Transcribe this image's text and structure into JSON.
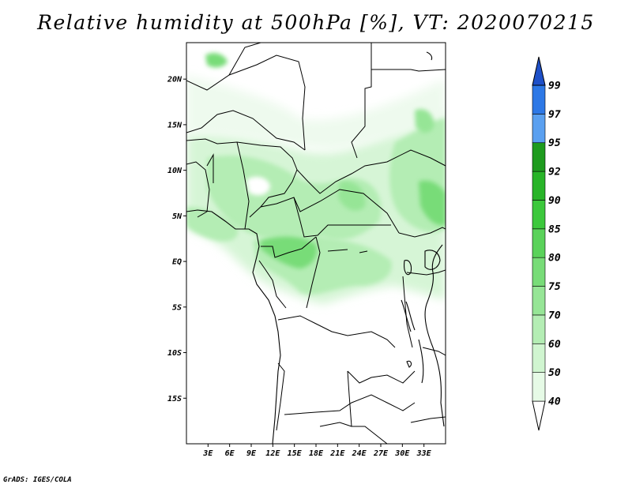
{
  "title": "Relative humidity at 500hPa [%], VT: 2020070215",
  "credit": "GrADS: IGES/COLA",
  "map": {
    "lon_range": [
      0,
      36
    ],
    "lat_range": [
      -20,
      24
    ],
    "lat_ticks": [
      {
        "value": 20,
        "label": "20N"
      },
      {
        "value": 15,
        "label": "15N"
      },
      {
        "value": 10,
        "label": "10N"
      },
      {
        "value": 5,
        "label": "5N"
      },
      {
        "value": 0,
        "label": "EQ"
      },
      {
        "value": -5,
        "label": "5S"
      },
      {
        "value": -10,
        "label": "10S"
      },
      {
        "value": -15,
        "label": "15S"
      }
    ],
    "lon_ticks": [
      {
        "value": 3,
        "label": "3E"
      },
      {
        "value": 6,
        "label": "6E"
      },
      {
        "value": 9,
        "label": "9E"
      },
      {
        "value": 12,
        "label": "12E"
      },
      {
        "value": 15,
        "label": "15E"
      },
      {
        "value": 18,
        "label": "18E"
      },
      {
        "value": 21,
        "label": "21E"
      },
      {
        "value": 24,
        "label": "24E"
      },
      {
        "value": 27,
        "label": "27E"
      },
      {
        "value": 30,
        "label": "30E"
      },
      {
        "value": 33,
        "label": "33E"
      }
    ]
  },
  "colorbar": {
    "levels": [
      "40",
      "50",
      "60",
      "70",
      "75",
      "80",
      "85",
      "90",
      "92",
      "95",
      "97",
      "99"
    ],
    "colors": [
      "#ffffff",
      "#e6fae6",
      "#d0f5d0",
      "#b4edb4",
      "#96e596",
      "#78dc78",
      "#5ad25a",
      "#3cc83c",
      "#28b428",
      "#1e9b1e",
      "#5aa0f0",
      "#2d78e6",
      "#1e50c8"
    ]
  },
  "chart_data": {
    "type": "heatmap",
    "title": "Relative humidity at 500hPa [%], VT: 2020070215",
    "units": "%",
    "color_levels": [
      40,
      50,
      60,
      70,
      75,
      80,
      85,
      90,
      92,
      95,
      97,
      99
    ],
    "xlim": [
      0,
      36
    ],
    "ylim": [
      -20,
      24
    ],
    "regions": [
      {
        "lon": 4,
        "lat": 23,
        "rh_class": 75
      },
      {
        "lon": 3,
        "lat": 21,
        "rh_class": 50
      },
      {
        "lon": 17,
        "lat": 14,
        "rh_class": 50
      },
      {
        "lon": 31,
        "lat": 15,
        "rh_class": 70
      },
      {
        "lon": 6,
        "lat": 11,
        "rh_class": 60
      },
      {
        "lon": 10,
        "lat": 9,
        "rh_class": 40
      },
      {
        "lon": 20,
        "lat": 9,
        "rh_class": 70
      },
      {
        "lon": 31,
        "lat": 8,
        "rh_class": 80
      },
      {
        "lon": 3,
        "lat": 5,
        "rh_class": 60
      },
      {
        "lon": 14,
        "lat": 2,
        "rh_class": 75
      },
      {
        "lon": 18,
        "lat": 2,
        "rh_class": 80
      },
      {
        "lon": 24,
        "lat": 3,
        "rh_class": 60
      },
      {
        "lon": 32,
        "lat": 3,
        "rh_class": 60
      },
      {
        "lon": 15,
        "lat": -1,
        "rh_class": 70
      },
      {
        "lon": 20,
        "lat": -3,
        "rh_class": 60
      },
      {
        "lon": 18,
        "lat": -10,
        "rh_class": 40
      }
    ]
  }
}
